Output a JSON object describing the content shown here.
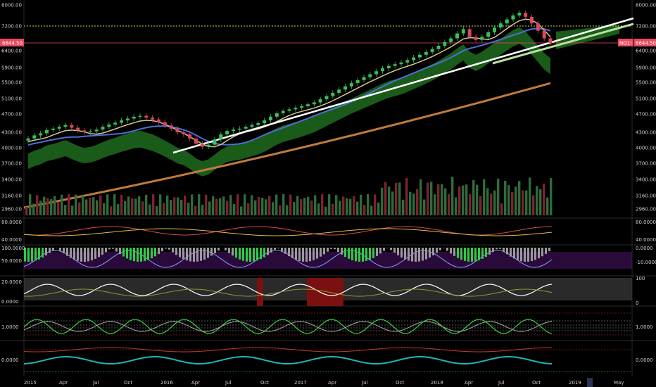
{
  "chart_data": {
    "type": "candlestick",
    "symbol_badge": "NQ1!",
    "last_price": "6644.50",
    "reference_level": 7200,
    "price_axis": {
      "labels": [
        "8000.00",
        "7200.00",
        "6400.00",
        "5900.00",
        "5500.00",
        "5100.00",
        "4700.00",
        "4300.00",
        "4000.00",
        "3700.00",
        "3400.00",
        "3160.00",
        "2960.00"
      ],
      "ylim": [
        2960,
        8000
      ]
    },
    "time_axis": [
      "2015",
      "Apr",
      "Jul",
      "Oct",
      "2016",
      "Apr",
      "Jul",
      "Oct",
      "2017",
      "Apr",
      "Jul",
      "Oct",
      "2018",
      "Apr",
      "Jul",
      "Oct",
      "2019",
      "May"
    ],
    "price_series_close": [
      4180,
      4240,
      4280,
      4350,
      4380,
      4420,
      4460,
      4400,
      4340,
      4300,
      4320,
      4360,
      4420,
      4470,
      4510,
      4560,
      4600,
      4640,
      4660,
      4620,
      4580,
      4520,
      4450,
      4380,
      4300,
      4260,
      4180,
      4080,
      4020,
      4060,
      4160,
      4260,
      4330,
      4360,
      4380,
      4420,
      4460,
      4500,
      4560,
      4640,
      4720,
      4780,
      4820,
      4860,
      4900,
      4950,
      5000,
      5080,
      5160,
      5240,
      5320,
      5400,
      5480,
      5560,
      5640,
      5720,
      5800,
      5880,
      5950,
      6000,
      6050,
      6120,
      6200,
      6280,
      6360,
      6450,
      6560,
      6680,
      6800,
      6960,
      7100,
      6850,
      6750,
      6850,
      7000,
      7150,
      7300,
      7450,
      7600,
      7700,
      7550,
      7300,
      7050,
      6800,
      6650
    ],
    "indicator_labels": {
      "rsi": [
        "80.0000",
        "40.0000"
      ],
      "stoch": [
        "100.0000",
        "50.0000"
      ],
      "stoch_right": [
        "0.0000",
        "-10.0000"
      ],
      "adx": [
        "20.0000",
        "0.0000"
      ],
      "adx_right": [
        "100",
        "0"
      ],
      "ratio": [
        "1.0000"
      ],
      "ratio_right": [
        "1.0000"
      ],
      "osc": [
        "0.0000"
      ],
      "osc_right": [
        "0.0000"
      ]
    }
  }
}
